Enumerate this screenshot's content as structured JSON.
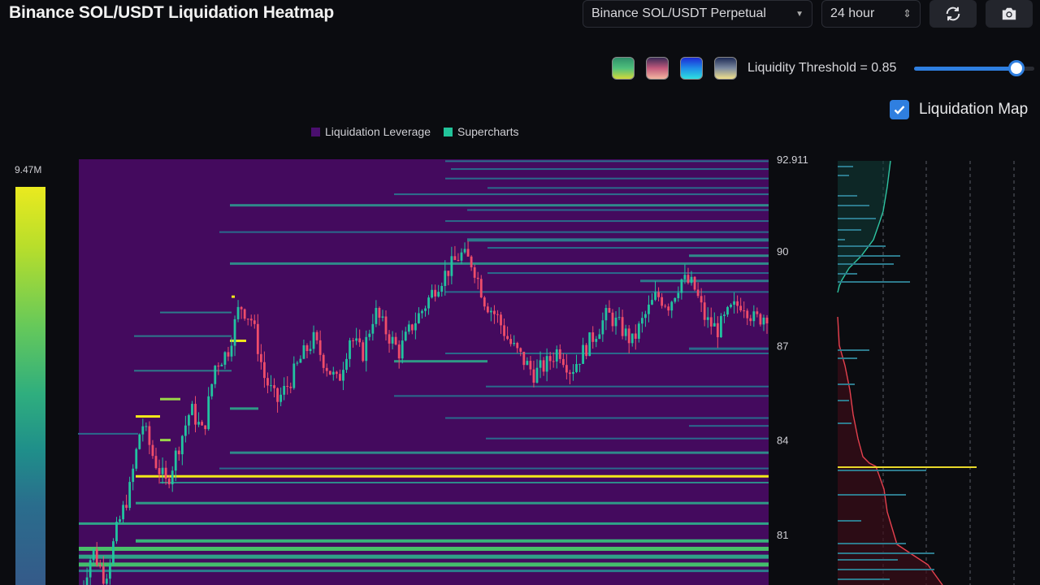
{
  "header": {
    "title": "Binance SOL/USDT Liquidation Heatmap",
    "market_select": "Binance SOL/USDT Perpetual",
    "range_select": "24 hour",
    "refresh_icon": "refresh-icon",
    "camera_icon": "camera-icon"
  },
  "controls": {
    "palettes": [
      "palette-viridis",
      "palette-magma",
      "palette-blue",
      "palette-cividis"
    ],
    "threshold_label": "Liquidity Threshold = 0.85",
    "threshold_value": 0.85,
    "liquidation_map_label": "Liquidation Map",
    "liquidation_map_checked": true
  },
  "colors": {
    "background": "#0b0c10",
    "heatmap_base": "#440a5e",
    "accent": "#2f7fe0",
    "up_candle": "#22c3a0",
    "down_candle": "#ef4d6a",
    "high_liquidity": "#f2e81a"
  },
  "chart_data": {
    "type": "heatmap",
    "legend": [
      {
        "name": "Liquidation Leverage",
        "color": "#440a5e"
      },
      {
        "name": "Supercharts",
        "color": "#22c3a0"
      }
    ],
    "legend_position": "top-center",
    "color_scale_max_label": "9.47M",
    "y_axis": {
      "ticks": [
        92.911,
        90,
        87,
        84,
        81
      ],
      "tick_labels": [
        "92.911",
        "90",
        "87",
        "84",
        "81"
      ]
    },
    "price_path": [
      79.2,
      80.5,
      79.6,
      81.2,
      82.4,
      84.6,
      83.4,
      82.6,
      83.8,
      85.0,
      84.2,
      86.4,
      86.8,
      88.3,
      87.8,
      86.0,
      85.2,
      85.8,
      86.6,
      87.2,
      86.4,
      85.8,
      87.3,
      86.7,
      88.1,
      87.4,
      86.8,
      87.6,
      88.2,
      88.9,
      89.4,
      89.9,
      89.6,
      88.4,
      87.9,
      87.1,
      86.6,
      86.1,
      86.4,
      86.9,
      86.2,
      86.8,
      87.4,
      88.0,
      87.6,
      87.1,
      87.9,
      88.6,
      88.3,
      89.1,
      88.9,
      87.8,
      87.5,
      88.1,
      88.4,
      87.8,
      88.0
    ]
  },
  "side_panel": {
    "grid_lines": 4
  }
}
